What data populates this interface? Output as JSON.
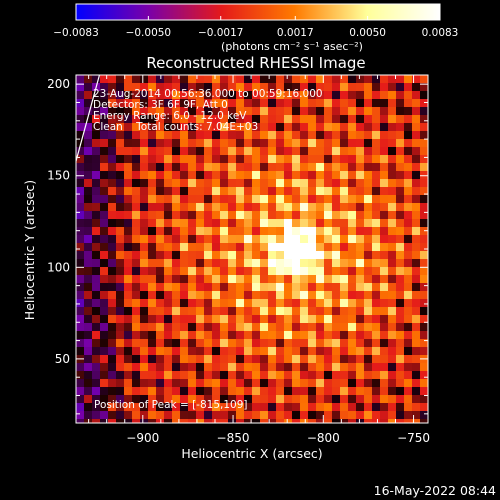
{
  "chart_data": {
    "type": "heatmap",
    "title": "Reconstructed RHESSI Image",
    "xlabel": "Heliocentric X (arcsec)",
    "ylabel": "Heliocentric Y (arcsec)",
    "xlim": [
      -937,
      -742
    ],
    "ylim": [
      15,
      205
    ],
    "x_ticks": [
      -900,
      -850,
      -800,
      -750
    ],
    "x_tick_labels": [
      "−900",
      "−850",
      "−800",
      "−750"
    ],
    "y_ticks": [
      50,
      100,
      150,
      200
    ],
    "y_tick_labels": [
      "50",
      "100",
      "150",
      "200"
    ],
    "colorbar": {
      "range": [
        -0.0083,
        0.0083
      ],
      "ticks": [
        -0.0083,
        -0.005,
        -0.0017,
        0.0017,
        0.005,
        0.0083
      ],
      "tick_labels": [
        "−0.0083",
        "−0.0050",
        "−0.0017",
        "0.0017",
        "0.0050",
        "0.0083"
      ],
      "unit_label": "(photons cm⁻² s⁻¹ asec⁻²)",
      "colors": [
        "#0000ff",
        "#7a00a8",
        "#e41a1a",
        "#ff7a00",
        "#ffff9a",
        "#ffffff"
      ]
    },
    "info_lines": [
      "23-Aug-2014 00:56:36.000 to 00:59:16.000",
      "Detectors: 3F 6F 9F, Att 0",
      "Energy Range: 6.0 - 12.0 keV",
      "Clean    Total counts: 7.04E+03"
    ],
    "peak_label": "Position of Peak = [-815,109]",
    "peak": {
      "x": -815,
      "y": 109
    },
    "limb_line": {
      "x": [
        -937,
        -924
      ],
      "y": [
        158,
        205
      ]
    }
  },
  "footer": {
    "timestamp": "16-May-2022 08:44"
  }
}
